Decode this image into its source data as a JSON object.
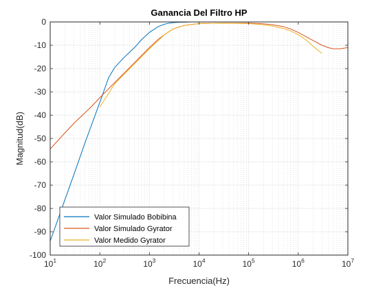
{
  "chart_data": {
    "type": "line",
    "title": "Ganancia Del Filtro HP",
    "xlabel": "Frecuencia(Hz)",
    "ylabel": "Magnitud(dB)",
    "xscale": "log",
    "xlim": [
      10,
      10000000
    ],
    "ylim": [
      -100,
      0
    ],
    "grid": "major and minor (dotted)",
    "legend_position": "bottom-left",
    "x_ticks": [
      {
        "base": "10",
        "exp": "1"
      },
      {
        "base": "10",
        "exp": "2"
      },
      {
        "base": "10",
        "exp": "3"
      },
      {
        "base": "10",
        "exp": "4"
      },
      {
        "base": "10",
        "exp": "5"
      },
      {
        "base": "10",
        "exp": "6"
      },
      {
        "base": "10",
        "exp": "7"
      }
    ],
    "y_ticks": [
      "0",
      "-10",
      "-20",
      "-30",
      "-40",
      "-50",
      "-60",
      "-70",
      "-80",
      "-90",
      "-100"
    ],
    "series": [
      {
        "name": "Valor Simulado Bobibina",
        "color": "#0072BD",
        "x": [
          10,
          15,
          20,
          30,
          50,
          70,
          100,
          150,
          200,
          300,
          500,
          700,
          1000,
          1500,
          2000,
          2500,
          3000,
          4000,
          5000,
          7000,
          10000,
          100000,
          1000000,
          10000000
        ],
        "y": [
          -94,
          -83.5,
          -76,
          -65.5,
          -52,
          -43.5,
          -34.5,
          -24,
          -19.5,
          -15.5,
          -11,
          -7.5,
          -4.5,
          -2,
          -1,
          -0.5,
          -0.3,
          -0.1,
          -0.1,
          0,
          0,
          0,
          0,
          0
        ]
      },
      {
        "name": "Valor Simulado Gyrator",
        "color": "#D95319",
        "x": [
          10,
          20,
          30,
          50,
          70,
          100,
          200,
          500,
          1000,
          1500,
          2000,
          3000,
          5000,
          10000,
          30000,
          100000,
          200000,
          300000,
          500000,
          700000,
          1000000,
          2000000,
          3000000,
          4000000,
          5000000,
          7000000,
          10000000
        ],
        "y": [
          -54.5,
          -47.5,
          -43.5,
          -39,
          -36,
          -32.5,
          -26,
          -17.5,
          -11,
          -7.5,
          -5.5,
          -3,
          -1.5,
          -0.7,
          -0.5,
          -0.5,
          -0.8,
          -1.2,
          -2,
          -3,
          -4.5,
          -8,
          -10,
          -11,
          -11.5,
          -11.5,
          -11
        ]
      },
      {
        "name": "Valor Medido Gyrator",
        "color": "#EDB120",
        "x": [
          100,
          200,
          500,
          1000,
          1500,
          2000,
          3000,
          5000,
          10000,
          30000,
          100000,
          200000,
          300000,
          500000,
          700000,
          1000000,
          1500000,
          2000000,
          3000000
        ],
        "y": [
          -36.5,
          -26.5,
          -18,
          -11.5,
          -8,
          -5.5,
          -3,
          -1.5,
          -0.7,
          -0.5,
          -0.7,
          -1.2,
          -1.8,
          -2.8,
          -3.8,
          -5.5,
          -8,
          -10.5,
          -13.5
        ]
      }
    ]
  }
}
